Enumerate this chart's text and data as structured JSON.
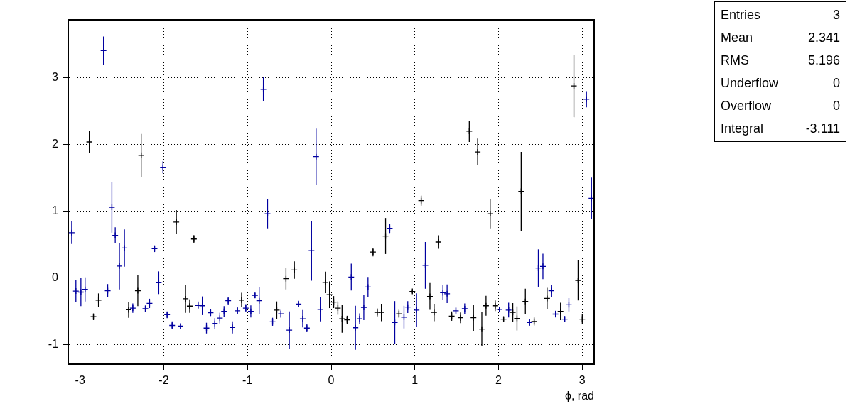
{
  "chart_data": {
    "type": "scatter",
    "xlabel": "ϕ, rad",
    "xlim": [
      -3.1416,
      3.1416
    ],
    "xticks": [
      -3,
      -2,
      -1,
      0,
      1,
      2,
      3
    ],
    "ylim": [
      -1.29,
      3.87
    ],
    "yticks": [
      -1,
      0,
      1,
      2,
      3
    ],
    "grid": true,
    "legend": false,
    "marker": "cross",
    "annotations": [
      "Entries 3",
      "Mean 2.341",
      "RMS 5.196",
      "Underflow 0",
      "Overflow 0",
      "Integral -3.111"
    ],
    "series": [
      {
        "x": [
          -3.1,
          -3.05,
          -2.99,
          -2.94,
          -2.89,
          -2.84,
          -2.78,
          -2.72,
          -2.67,
          -2.62,
          -2.58,
          -2.53,
          -2.47,
          -2.42,
          -2.37,
          -2.31,
          -2.27,
          -2.22,
          -2.17,
          -2.11,
          -2.06,
          -2.01,
          -1.96,
          -1.9,
          -1.85,
          -1.8,
          -1.74,
          -1.69,
          -1.64,
          -1.59,
          -1.54,
          -1.49,
          -1.44,
          -1.39,
          -1.33,
          -1.28,
          -1.23,
          -1.18,
          -1.12,
          -1.07,
          -1.02,
          -0.96,
          -0.91,
          -0.86,
          -0.81,
          -0.76,
          -0.7,
          -0.65,
          -0.6,
          -0.54,
          -0.5,
          -0.44,
          -0.39,
          -0.34,
          -0.29,
          -0.235,
          -0.18,
          -0.13,
          -0.07,
          -0.02,
          0.03,
          0.08,
          0.13,
          0.19,
          0.24,
          0.29,
          0.34,
          0.39,
          0.44,
          0.5,
          0.55,
          0.6,
          0.65,
          0.7,
          0.76,
          0.81,
          0.87,
          0.915,
          0.97,
          1.02,
          1.075,
          1.125,
          1.18,
          1.23,
          1.28,
          1.335,
          1.385,
          1.44,
          1.49,
          1.545,
          1.595,
          1.65,
          1.7,
          1.75,
          1.8,
          1.85,
          1.9,
          1.96,
          2.01,
          2.06,
          2.12,
          2.17,
          2.22,
          2.27,
          2.32,
          2.37,
          2.425,
          2.475,
          2.53,
          2.58,
          2.63,
          2.68,
          2.74,
          2.79,
          2.84,
          2.9,
          2.95,
          3.0,
          3.05,
          3.11
        ],
        "values": [
          0.68,
          -0.195,
          -0.21,
          -0.17,
          2.04,
          -0.58,
          -0.33,
          3.41,
          -0.19,
          1.06,
          0.64,
          0.18,
          0.45,
          -0.475,
          -0.45,
          -0.19,
          1.84,
          -0.46,
          -0.38,
          0.44,
          -0.07,
          1.66,
          -0.55,
          -0.71,
          0.84,
          -0.72,
          -0.31,
          -0.42,
          0.585,
          -0.41,
          -0.415,
          -0.75,
          -0.52,
          -0.68,
          -0.6,
          -0.5,
          -0.34,
          -0.74,
          -0.49,
          -0.33,
          -0.45,
          -0.5,
          -0.26,
          -0.34,
          2.83,
          0.965,
          -0.655,
          -0.48,
          -0.535,
          -0.01,
          -0.78,
          0.12,
          -0.39,
          -0.61,
          -0.75,
          0.41,
          1.82,
          -0.47,
          -0.065,
          -0.25,
          -0.36,
          -0.45,
          -0.61,
          -0.625,
          0.015,
          -0.745,
          -0.61,
          -0.44,
          -0.135,
          0.39,
          -0.515,
          -0.515,
          0.63,
          0.745,
          -0.665,
          -0.535,
          -0.585,
          -0.435,
          -0.2,
          -0.48,
          1.16,
          0.19,
          -0.275,
          -0.515,
          0.54,
          -0.22,
          -0.235,
          -0.57,
          -0.49,
          -0.595,
          -0.46,
          2.2,
          -0.595,
          1.89,
          -0.765,
          -0.415,
          0.965,
          -0.415,
          -0.47,
          -0.615,
          -0.48,
          -0.515,
          -0.605,
          1.3,
          -0.35,
          -0.665,
          -0.65,
          0.15,
          0.175,
          -0.305,
          -0.19,
          -0.54,
          -0.5,
          -0.615,
          -0.4,
          2.88,
          -0.035,
          -0.615,
          2.68,
          1.195
        ],
        "errors": [
          0.17,
          0.16,
          0.21,
          0.18,
          0.16,
          0.05,
          0.1,
          0.21,
          0.1,
          0.38,
          0.12,
          0.35,
          0.28,
          0.12,
          0.07,
          0.23,
          0.32,
          0.05,
          0.07,
          0.05,
          0.17,
          0.09,
          0.05,
          0.06,
          0.18,
          0.04,
          0.21,
          0.1,
          0.06,
          0.06,
          0.14,
          0.08,
          0.05,
          0.08,
          0.08,
          0.08,
          0.06,
          0.09,
          0.05,
          0.11,
          0.06,
          0.09,
          0.04,
          0.2,
          0.18,
          0.22,
          0.06,
          0.13,
          0.06,
          0.16,
          0.28,
          0.13,
          0.05,
          0.13,
          0.06,
          0.45,
          0.42,
          0.18,
          0.16,
          0.2,
          0.09,
          0.1,
          0.21,
          0.06,
          0.2,
          0.33,
          0.08,
          0.19,
          0.15,
          0.065,
          0.06,
          0.13,
          0.27,
          0.07,
          0.32,
          0.06,
          0.17,
          0.09,
          0.03,
          0.25,
          0.075,
          0.35,
          0.2,
          0.13,
          0.1,
          0.11,
          0.14,
          0.07,
          0.05,
          0.08,
          0.08,
          0.16,
          0.2,
          0.2,
          0.26,
          0.15,
          0.22,
          0.08,
          0.04,
          0.035,
          0.11,
          0.14,
          0.18,
          0.59,
          0.19,
          0.05,
          0.06,
          0.28,
          0.19,
          0.16,
          0.09,
          0.05,
          0.13,
          0.045,
          0.1,
          0.47,
          0.3,
          0.07,
          0.12,
          0.31
        ],
        "colors": [
          "#0000a0",
          "#0000a0",
          "#0000a0",
          "#0000a0",
          "#000000",
          "#000000",
          "#000000",
          "#0000a0",
          "#0000a0",
          "#0000a0",
          "#0000a0",
          "#0000a0",
          "#0000a0",
          "#000000",
          "#0000a0",
          "#000000",
          "#000000",
          "#0000a0",
          "#0000a0",
          "#0000a0",
          "#0000a0",
          "#0000a0",
          "#0000a0",
          "#0000a0",
          "#000000",
          "#0000a0",
          "#000000",
          "#000000",
          "#000000",
          "#0000a0",
          "#0000a0",
          "#0000a0",
          "#0000a0",
          "#0000a0",
          "#0000a0",
          "#0000a0",
          "#0000a0",
          "#0000a0",
          "#0000a0",
          "#000000",
          "#0000a0",
          "#0000a0",
          "#0000a0",
          "#0000a0",
          "#0000a0",
          "#0000a0",
          "#0000a0",
          "#000000",
          "#0000a0",
          "#000000",
          "#0000a0",
          "#000000",
          "#0000a0",
          "#0000a0",
          "#0000a0",
          "#0000a0",
          "#0000a0",
          "#0000a0",
          "#000000",
          "#000000",
          "#000000",
          "#000000",
          "#000000",
          "#000000",
          "#0000a0",
          "#0000a0",
          "#0000a0",
          "#0000a0",
          "#0000a0",
          "#000000",
          "#000000",
          "#000000",
          "#000000",
          "#0000a0",
          "#0000a0",
          "#000000",
          "#0000a0",
          "#0000a0",
          "#000000",
          "#0000a0",
          "#000000",
          "#0000a0",
          "#000000",
          "#000000",
          "#000000",
          "#0000a0",
          "#0000a0",
          "#000000",
          "#0000a0",
          "#000000",
          "#0000a0",
          "#000000",
          "#000000",
          "#000000",
          "#000000",
          "#000000",
          "#000000",
          "#000000",
          "#0000a0",
          "#000000",
          "#0000a0",
          "#000000",
          "#000000",
          "#000000",
          "#000000",
          "#0000a0",
          "#000000",
          "#0000a0",
          "#0000a0",
          "#000000",
          "#0000a0",
          "#0000a0",
          "#000000",
          "#0000a0",
          "#0000a0",
          "#000000",
          "#000000",
          "#000000",
          "#0000a0",
          "#0000a0"
        ]
      }
    ]
  }
}
